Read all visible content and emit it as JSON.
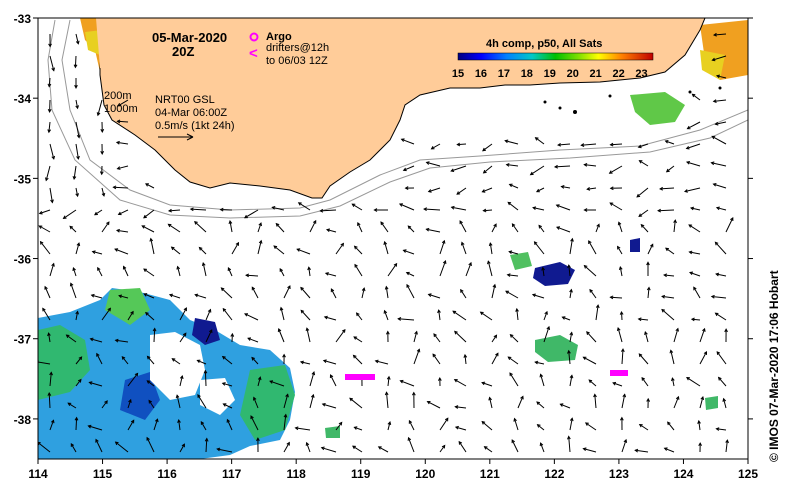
{
  "map": {
    "title_date": "05-Mar-2020",
    "title_time": "20Z",
    "argo_label": "Argo",
    "drifters_line1": "drifters@12h",
    "drifters_line2": "to 06/03 12Z",
    "isobath_200": "200m",
    "isobath_1000": "1000m",
    "model_label": "NRT00 GSL",
    "model_time": "04-Mar 06:00Z",
    "vector_scale": "0.5m/s (1kt 24h)",
    "credit": "© IMOS 07-Mar-2020 17:06 Hobart"
  },
  "colorbar": {
    "title": "4h comp, p50, All Sats",
    "min": 15,
    "max": 23.5,
    "ticks": [
      "15",
      "16",
      "17",
      "18",
      "19",
      "20",
      "21",
      "22",
      "23"
    ]
  },
  "axes": {
    "lon_ticks": [
      "114",
      "115",
      "116",
      "117",
      "118",
      "119",
      "120",
      "121",
      "122",
      "123",
      "124",
      "125"
    ],
    "lat_ticks": [
      "-33",
      "-34",
      "-35",
      "-36",
      "-37",
      "-38"
    ],
    "lon_range": [
      114,
      125
    ],
    "lat_range": [
      -38.5,
      -33
    ]
  },
  "colors": {
    "land": "#FFCC99",
    "argo": "#FF00FF",
    "drifter": "#FF00FF",
    "isobath": "#999999"
  }
}
